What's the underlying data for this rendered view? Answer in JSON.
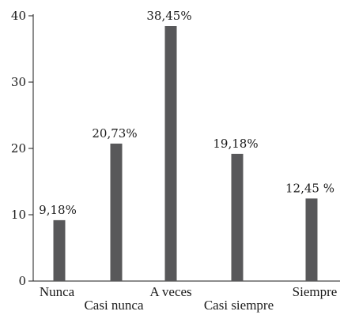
{
  "chart_data": {
    "type": "bar",
    "title": "",
    "xlabel": "",
    "ylabel": "",
    "categories": [
      "Nunca",
      "Casi nunca",
      "A veces",
      "Casi siempre",
      "Siempre"
    ],
    "values": [
      9.18,
      20.73,
      38.45,
      19.18,
      12.45
    ],
    "data_labels": [
      "9,18%",
      "20,73%",
      "38,45%",
      "19,18%",
      "12,45 %"
    ],
    "y_ticks": [
      0,
      10,
      20,
      30,
      40
    ],
    "y_tick_labels": [
      "0",
      "10",
      "20",
      "30",
      "40"
    ],
    "ylim": [
      0,
      40
    ],
    "grid": false,
    "legend": "none",
    "bar_color": "#58585a"
  }
}
